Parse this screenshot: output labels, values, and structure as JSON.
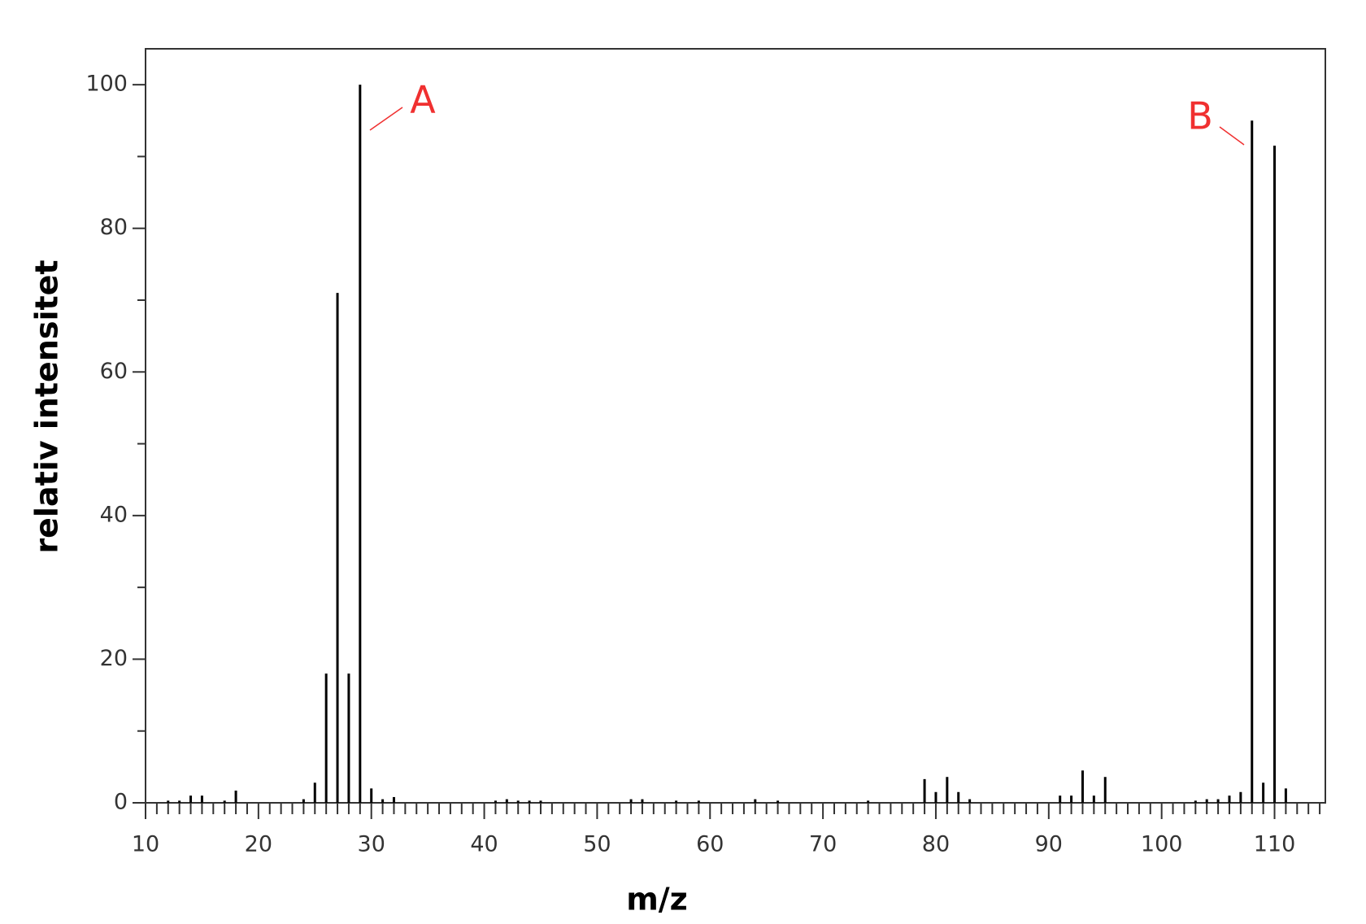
{
  "chart_data": {
    "type": "stem",
    "xlabel": "m/z",
    "ylabel": "relativ intensitet",
    "x": [
      12,
      13,
      14,
      15,
      17,
      18,
      24,
      25,
      26,
      27,
      28,
      29,
      30,
      31,
      32,
      41,
      42,
      43,
      44,
      45,
      53,
      54,
      57,
      59,
      64,
      66,
      74,
      79,
      80,
      81,
      82,
      83,
      91,
      92,
      93,
      94,
      95,
      103,
      104,
      105,
      106,
      107,
      108,
      109,
      110,
      111
    ],
    "values": [
      0.3,
      0.3,
      1,
      1,
      0.3,
      1.7,
      0.5,
      2.8,
      18,
      71,
      18,
      100,
      2,
      0.5,
      0.8,
      0.3,
      0.5,
      0.3,
      0.3,
      0.3,
      0.5,
      0.5,
      0.3,
      0.3,
      0.5,
      0.3,
      0.3,
      3.3,
      1.5,
      3.6,
      1.5,
      0.5,
      1,
      1,
      4.5,
      1,
      3.6,
      0.3,
      0.5,
      0.5,
      1,
      1.5,
      95,
      2.8,
      91.5,
      2
    ],
    "color": "#000000",
    "xlim": [
      10,
      114.5
    ],
    "ylim": [
      0,
      105
    ],
    "xticks": [
      10,
      20,
      30,
      40,
      50,
      60,
      70,
      80,
      90,
      100,
      110
    ],
    "xminorticks": [
      11,
      12,
      13,
      14,
      15,
      16,
      17,
      18,
      19,
      21,
      22,
      23,
      24,
      25,
      26,
      27,
      28,
      29,
      31,
      32,
      33,
      34,
      35,
      36,
      37,
      38,
      39,
      41,
      42,
      43,
      44,
      45,
      46,
      47,
      48,
      49,
      51,
      52,
      53,
      54,
      55,
      56,
      57,
      58,
      59,
      61,
      62,
      63,
      64,
      65,
      66,
      67,
      68,
      69,
      71,
      72,
      73,
      74,
      75,
      76,
      77,
      78,
      79,
      81,
      82,
      83,
      84,
      85,
      86,
      87,
      88,
      89,
      91,
      92,
      93,
      94,
      95,
      96,
      97,
      98,
      99,
      101,
      102,
      103,
      104,
      105,
      106,
      107,
      108,
      109,
      111,
      112,
      113,
      114
    ],
    "yticks": [
      0,
      20,
      40,
      60,
      80,
      100
    ],
    "yminorticks": [
      10,
      30,
      50,
      70,
      90
    ],
    "annotations": [
      {
        "text": "A",
        "color": "#f03030"
      },
      {
        "text": "B",
        "color": "#f03030"
      }
    ]
  }
}
